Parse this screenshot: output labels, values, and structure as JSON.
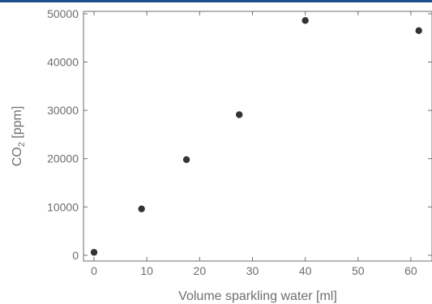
{
  "chart_data": {
    "type": "scatter",
    "title": "",
    "xlabel": "Volume sparkling water [ml]",
    "ylabel_main": "CO",
    "ylabel_sub": "2",
    "ylabel_tail": " [ppm]",
    "xlim": [
      -2,
      64
    ],
    "ylim": [
      -1200,
      50500
    ],
    "xticks": [
      0,
      10,
      20,
      30,
      40,
      50,
      60
    ],
    "yticks": [
      0,
      10000,
      20000,
      30000,
      40000,
      50000
    ],
    "grid": false,
    "legend": "none",
    "point_color": "#333333",
    "axis_color": "#6d6e71",
    "points": [
      {
        "x": 0,
        "y": 600
      },
      {
        "x": 9,
        "y": 9600
      },
      {
        "x": 17.5,
        "y": 19800
      },
      {
        "x": 27.5,
        "y": 29100
      },
      {
        "x": 40,
        "y": 48600
      },
      {
        "x": 61.5,
        "y": 46500
      }
    ]
  }
}
